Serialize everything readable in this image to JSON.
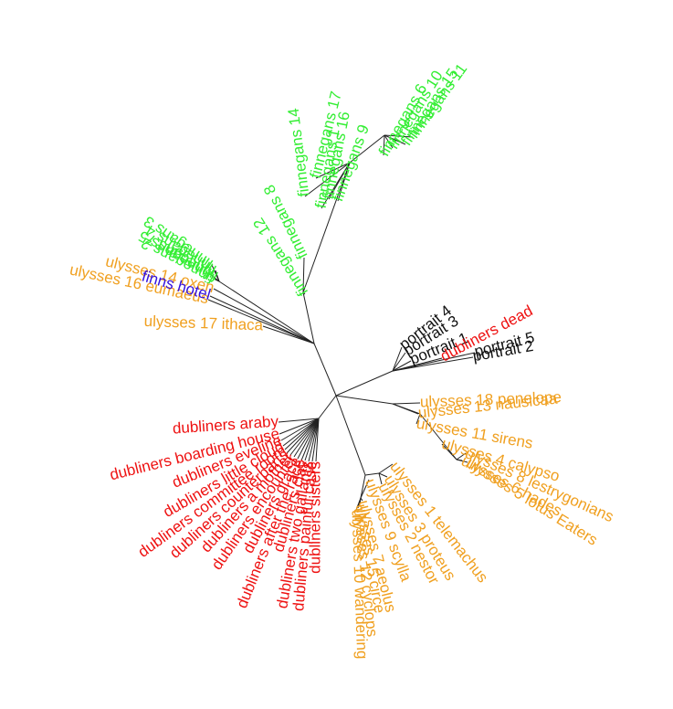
{
  "colors": {
    "finnegans": "#33ee33",
    "ulysses": "#f0a020",
    "dubliners": "#ee1111",
    "portrait": "#111111",
    "finns_hotel": "#3311dd",
    "edge": "#222222"
  },
  "tree": {
    "leaves": [
      {
        "id": "fw-17",
        "text": "finnegans 17",
        "group": "finnegans"
      },
      {
        "id": "fw-16",
        "text": "finnegans 16",
        "group": "finnegans"
      },
      {
        "id": "fw-9",
        "text": "finnegans 9",
        "group": "finnegans"
      },
      {
        "id": "fw-6",
        "text": "finnegans 6",
        "group": "finnegans"
      },
      {
        "id": "fw-10",
        "text": "finnegans 10",
        "group": "finnegans"
      },
      {
        "id": "fw-15",
        "text": "finnegans 15",
        "group": "finnegans"
      },
      {
        "id": "fw-11",
        "text": "finnegans 11",
        "group": "finnegans"
      },
      {
        "id": "fw-14",
        "text": "finnegans 14",
        "group": "finnegans"
      },
      {
        "id": "fw-1",
        "text": "finnegans 1",
        "group": "finnegans"
      },
      {
        "id": "fw-8",
        "text": "finnegans 8",
        "group": "finnegans"
      },
      {
        "id": "fw-12",
        "text": "finnegans 12",
        "group": "finnegans"
      },
      {
        "id": "fw-3",
        "text": "finnegans 3",
        "group": "finnegans"
      },
      {
        "id": "fw-4",
        "text": "finnegans 4",
        "group": "finnegans"
      },
      {
        "id": "fw-5",
        "text": "finnegans 5",
        "group": "finnegans"
      },
      {
        "id": "fw-2",
        "text": "finnegans 2",
        "group": "finnegans"
      },
      {
        "id": "fw-7",
        "text": "finnegans 7",
        "group": "finnegans"
      },
      {
        "id": "u-14",
        "text": "ulysses 14 oxen",
        "group": "ulysses"
      },
      {
        "id": "u-16",
        "text": "ulysses 16 eumaeus",
        "group": "ulysses"
      },
      {
        "id": "fh",
        "text": "finns hotel",
        "group": "finns_hotel"
      },
      {
        "id": "u-17",
        "text": "ulysses 17 ithaca",
        "group": "ulysses"
      },
      {
        "id": "p-4",
        "text": "portrait 4",
        "group": "portrait"
      },
      {
        "id": "p-3",
        "text": "portrait 3",
        "group": "portrait"
      },
      {
        "id": "p-1",
        "text": "portrait 1",
        "group": "portrait"
      },
      {
        "id": "d-dead",
        "text": "dubliners dead",
        "group": "dubliners"
      },
      {
        "id": "p-5",
        "text": "portrait 5",
        "group": "portrait"
      },
      {
        "id": "p-2",
        "text": "portrait 2",
        "group": "portrait"
      },
      {
        "id": "u-18",
        "text": "ulysses 18 penelope",
        "group": "ulysses"
      },
      {
        "id": "u-13",
        "text": "ulysses 13 nausicaa",
        "group": "ulysses"
      },
      {
        "id": "u-11",
        "text": "ulysses 11 sirens",
        "group": "ulysses"
      },
      {
        "id": "u-4",
        "text": "ulysses 4 calypso",
        "group": "ulysses"
      },
      {
        "id": "u-8",
        "text": "ulysses 8 lestrygonians",
        "group": "ulysses"
      },
      {
        "id": "u-6",
        "text": "ulysses 6 hades",
        "group": "ulysses"
      },
      {
        "id": "u-5",
        "text": "ulysses 5 lotus Eaters",
        "group": "ulysses"
      },
      {
        "id": "u-1",
        "text": "ulysses 1 telemachus",
        "group": "ulysses"
      },
      {
        "id": "u-3",
        "text": "ulysses 3 proteus",
        "group": "ulysses"
      },
      {
        "id": "u-2",
        "text": "ulysses 2 nestor",
        "group": "ulysses"
      },
      {
        "id": "u-9",
        "text": "ulysses 9 scylla",
        "group": "ulysses"
      },
      {
        "id": "u-7",
        "text": "ulysses 7 aeolus",
        "group": "ulysses"
      },
      {
        "id": "u-15",
        "text": "ulysses 15 circe",
        "group": "ulysses"
      },
      {
        "id": "u-12",
        "text": "ulysses 12 cyclops",
        "group": "ulysses"
      },
      {
        "id": "u-10",
        "text": "ulysses 10 wandering",
        "group": "ulysses"
      },
      {
        "id": "d-araby",
        "text": "dubliners araby",
        "group": "dubliners"
      },
      {
        "id": "d-boarding",
        "text": "dubliners boarding house",
        "group": "dubliners"
      },
      {
        "id": "d-eveline",
        "text": "dubliners eveline",
        "group": "dubliners"
      },
      {
        "id": "d-cloud",
        "text": "dubliners little cloud",
        "group": "dubliners"
      },
      {
        "id": "d-committee",
        "text": "dubliners committee room",
        "group": "dubliners"
      },
      {
        "id": "d-counterparts",
        "text": "dubliners counterparts",
        "group": "dubliners"
      },
      {
        "id": "d-mother",
        "text": "dubliners a mother",
        "group": "dubliners"
      },
      {
        "id": "d-encounter",
        "text": "dubliners encounter",
        "group": "dubliners"
      },
      {
        "id": "d-grace",
        "text": "dubliners grace",
        "group": "dubliners"
      },
      {
        "id": "d-race",
        "text": "dubliners after the race",
        "group": "dubliners"
      },
      {
        "id": "d-clay",
        "text": "dubliners clay",
        "group": "dubliners"
      },
      {
        "id": "d-gallants",
        "text": "dubliners two gallants",
        "group": "dubliners"
      },
      {
        "id": "d-case",
        "text": "dubliners painful case",
        "group": "dubliners"
      },
      {
        "id": "d-sisters",
        "text": "dubliners sisters",
        "group": "dubliners"
      }
    ]
  }
}
